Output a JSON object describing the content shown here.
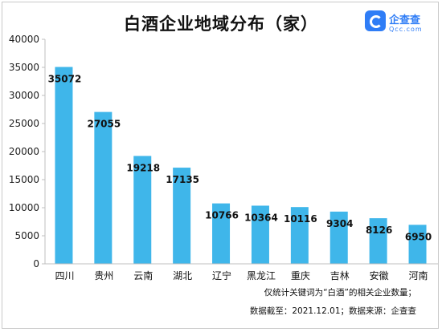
{
  "title": "白酒企业地域分布（家）",
  "logo": {
    "name": "企查查",
    "url": "Qcc.com",
    "accent_color": "#2f7df6",
    "icon": "qcc-logo-icon"
  },
  "notes": {
    "line1": "仅统计关键词为“白酒”的相关企业数量；",
    "line2": "数据截至：2021.12.01；数据来源：企查查"
  },
  "chart_data": {
    "type": "bar",
    "title": "白酒企业地域分布（家）",
    "categories": [
      "四川",
      "贵州",
      "云南",
      "湖北",
      "辽宁",
      "黑龙江",
      "重庆",
      "吉林",
      "安徽",
      "河南"
    ],
    "values": [
      35072,
      27055,
      19218,
      17135,
      10766,
      10364,
      10116,
      9304,
      8126,
      6950
    ],
    "value_labels": [
      "35072",
      "27055",
      "19218",
      "17135",
      "10766",
      "10364",
      "10116",
      "9304",
      "8126",
      "6950"
    ],
    "ylim": [
      0,
      40000
    ],
    "yticks": [
      0,
      5000,
      10000,
      15000,
      20000,
      25000,
      30000,
      35000,
      40000
    ],
    "ytick_labels": [
      "0",
      "5000",
      "10000",
      "15000",
      "20000",
      "25000",
      "30000",
      "35000",
      "40000"
    ],
    "xlabel": "",
    "ylabel": "",
    "grid": false,
    "bar_color": "#3fb6ea"
  }
}
